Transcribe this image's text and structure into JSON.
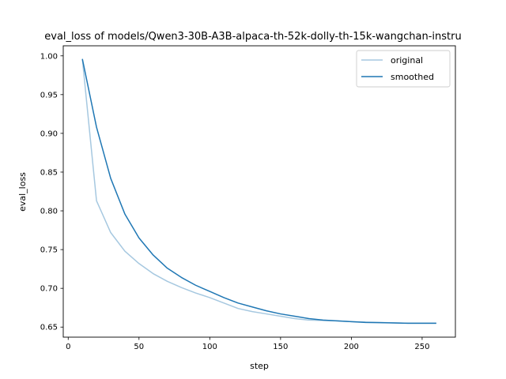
{
  "chart_data": {
    "type": "line",
    "title": "eval_loss of models/Qwen3-30B-A3B-alpaca-th-52k-dolly-th-15k-wangchan-instru",
    "xlabel": "step",
    "ylabel": "eval_loss",
    "xlim": [
      -3.5,
      273.5
    ],
    "ylim": [
      0.637,
      1.013
    ],
    "x_ticks": [
      0,
      50,
      100,
      150,
      200,
      250
    ],
    "y_ticks": [
      0.65,
      0.7,
      0.75,
      0.8,
      0.85,
      0.9,
      0.95,
      1.0
    ],
    "y_tick_labels": [
      "0.65",
      "0.70",
      "0.75",
      "0.80",
      "0.85",
      "0.90",
      "0.95",
      "1.00"
    ],
    "grid": false,
    "legend_position": "upper right",
    "series": [
      {
        "name": "original",
        "color": "#a6c8e0",
        "x": [
          10,
          20,
          30,
          40,
          50,
          60,
          70,
          80,
          90,
          100,
          110,
          120,
          130,
          140,
          150,
          160,
          170,
          180,
          190,
          200,
          210,
          220,
          230,
          240,
          250,
          260
        ],
        "y": [
          0.996,
          0.813,
          0.772,
          0.748,
          0.732,
          0.719,
          0.709,
          0.701,
          0.694,
          0.688,
          0.681,
          0.674,
          0.67,
          0.667,
          0.664,
          0.661,
          0.659,
          0.6585,
          0.658,
          0.657,
          0.6565,
          0.656,
          0.6555,
          0.655,
          0.655,
          0.655
        ]
      },
      {
        "name": "smoothed",
        "color": "#1f77b4",
        "x": [
          10,
          20,
          30,
          40,
          50,
          60,
          70,
          80,
          90,
          100,
          110,
          120,
          130,
          140,
          150,
          160,
          170,
          180,
          190,
          200,
          210,
          220,
          230,
          240,
          250,
          260
        ],
        "y": [
          0.996,
          0.908,
          0.842,
          0.796,
          0.765,
          0.743,
          0.726,
          0.714,
          0.704,
          0.696,
          0.688,
          0.681,
          0.676,
          0.671,
          0.667,
          0.664,
          0.661,
          0.659,
          0.658,
          0.657,
          0.656,
          0.6557,
          0.6553,
          0.655,
          0.655,
          0.655
        ]
      }
    ]
  }
}
